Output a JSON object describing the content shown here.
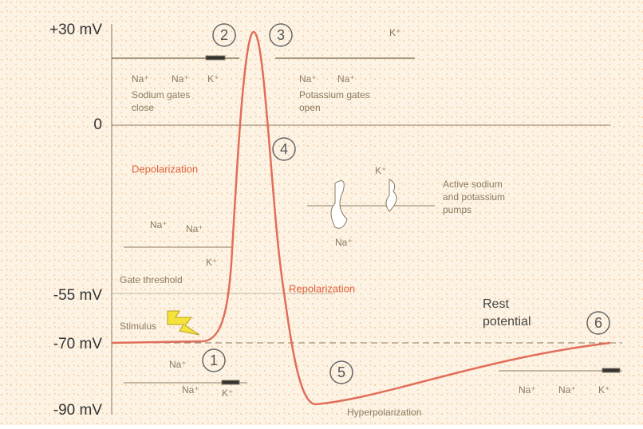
{
  "axis_labels": [
    "+30 mV",
    "0",
    "-55 mV",
    "-70 mV",
    "-90 mV"
  ],
  "steps": [
    "1",
    "2",
    "3",
    "4",
    "5",
    "6"
  ],
  "labels": {
    "sodium_close": [
      "Sodium gates",
      "close"
    ],
    "potassium_open": [
      "Potassium gates",
      "open"
    ],
    "depolarization": "Depolarization",
    "repolarization": "Repolarization",
    "pumps": [
      "Active sodium",
      "and potassium",
      "pumps"
    ],
    "threshold": "Gate threshold",
    "stimulus": "Stimulus",
    "rest": [
      "Rest",
      "potential"
    ],
    "hyperpolarization": "Hyperpolarization"
  },
  "ions": [
    "Na⁺",
    "Na⁺",
    "K⁺",
    "Na⁺",
    "Na⁺",
    "K⁺",
    "K⁺",
    "Na⁺",
    "Na⁺",
    "Na⁺",
    "K⁺",
    "Na⁺",
    "Na⁺",
    "K⁺",
    "Na⁺",
    "Na⁺",
    "K⁺"
  ]
}
